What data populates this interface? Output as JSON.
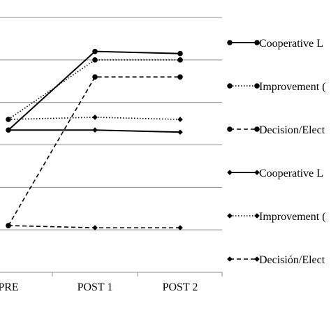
{
  "chart_data": {
    "type": "line",
    "categories": [
      "PRE",
      "POST 1",
      "POST 2"
    ],
    "ylim": [
      0,
      6
    ],
    "grid": true,
    "legend_position": "right",
    "series": [
      {
        "name": "Cooperative L",
        "values": [
          3.35,
          5.2,
          5.15
        ],
        "marker": "circle",
        "dash": "solid"
      },
      {
        "name": "Improvement (",
        "values": [
          3.6,
          5.0,
          5.0
        ],
        "marker": "circle",
        "dash": "dotted"
      },
      {
        "name": "Decision/Elect",
        "values": [
          1.1,
          4.6,
          4.6
        ],
        "marker": "circle",
        "dash": "dashed"
      },
      {
        "name": "Cooperative L",
        "values": [
          3.35,
          3.35,
          3.3
        ],
        "marker": "diamond",
        "dash": "solid"
      },
      {
        "name": "Improvement (",
        "values": [
          3.6,
          3.65,
          3.6
        ],
        "marker": "diamond",
        "dash": "dotted"
      },
      {
        "name": "Decisión/Elect",
        "values": [
          1.1,
          1.05,
          1.05
        ],
        "marker": "diamond",
        "dash": "dashed"
      }
    ]
  }
}
